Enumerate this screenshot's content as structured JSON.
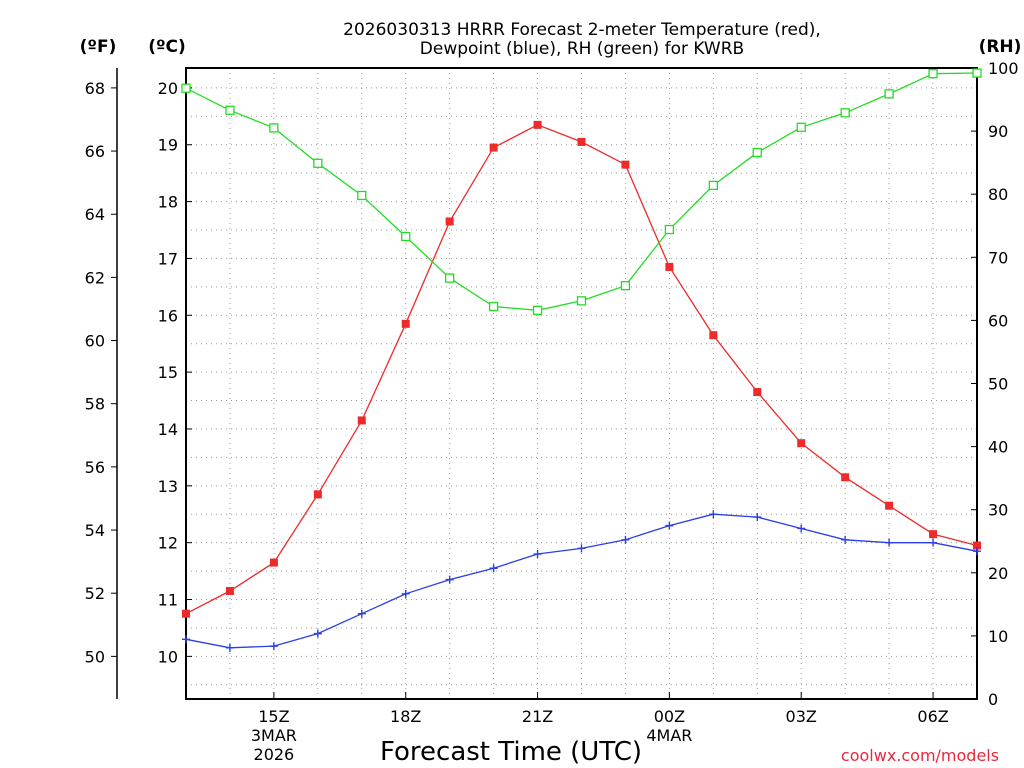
{
  "chart_data": {
    "type": "line",
    "title_line1": "2026030313 HRRR Forecast 2-meter Temperature (red),",
    "title_line2": "Dewpoint (blue), RH (green) for KWRB",
    "unit_f": "(ºF)",
    "unit_c": "(ºC)",
    "unit_rh": "(RH)",
    "xlabel": "Forecast Time (UTC)",
    "credit": "coolwx.com/models",
    "x_hours": [
      13,
      14,
      15,
      16,
      17,
      18,
      19,
      20,
      21,
      22,
      23,
      24,
      25,
      26,
      27,
      28,
      29,
      30,
      31
    ],
    "xlim": [
      13,
      31
    ],
    "x_ticks": [
      {
        "hour": 15,
        "lines": [
          "15Z",
          "3MAR",
          "2026"
        ]
      },
      {
        "hour": 18,
        "lines": [
          "18Z"
        ]
      },
      {
        "hour": 21,
        "lines": [
          "21Z"
        ]
      },
      {
        "hour": 24,
        "lines": [
          "00Z",
          "4MAR"
        ]
      },
      {
        "hour": 27,
        "lines": [
          "03Z"
        ]
      },
      {
        "hour": 30,
        "lines": [
          "06Z"
        ]
      }
    ],
    "ylim_c": [
      9.25,
      20.35
    ],
    "ylim_rh": [
      0,
      100
    ],
    "y_ticks_c": [
      "10",
      "11",
      "12",
      "13",
      "14",
      "15",
      "16",
      "17",
      "18",
      "19",
      "20"
    ],
    "y_ticks_f": [
      "50",
      "52",
      "54",
      "56",
      "58",
      "60",
      "62",
      "64",
      "66",
      "68"
    ],
    "y_ticks_rh": [
      "0",
      "10",
      "20",
      "30",
      "40",
      "50",
      "60",
      "70",
      "80",
      "90",
      "100"
    ],
    "series": [
      {
        "name": "Temperature",
        "units": "C",
        "color": "#ee2a2a",
        "marker": "filled-square",
        "values": [
          10.75,
          11.15,
          11.65,
          12.85,
          14.15,
          15.85,
          17.65,
          18.95,
          19.35,
          19.05,
          18.65,
          16.85,
          15.65,
          14.65,
          13.75,
          13.15,
          12.65,
          12.15,
          11.95
        ]
      },
      {
        "name": "Dewpoint",
        "units": "C",
        "color": "#2a3ee8",
        "marker": "plus",
        "values": [
          10.3,
          10.15,
          10.18,
          10.4,
          10.75,
          11.1,
          11.35,
          11.55,
          11.8,
          11.9,
          12.05,
          12.3,
          12.5,
          12.45,
          12.25,
          12.05,
          12.0,
          12.0,
          11.85
        ]
      },
      {
        "name": "RH",
        "units": "%",
        "color": "#22dd22",
        "marker": "open-square",
        "values": [
          96.8,
          93.3,
          90.5,
          84.9,
          79.8,
          73.3,
          66.7,
          62.2,
          61.6,
          63.1,
          65.5,
          74.4,
          81.4,
          86.6,
          90.6,
          92.9,
          95.9,
          99.1,
          99.2
        ]
      }
    ]
  }
}
